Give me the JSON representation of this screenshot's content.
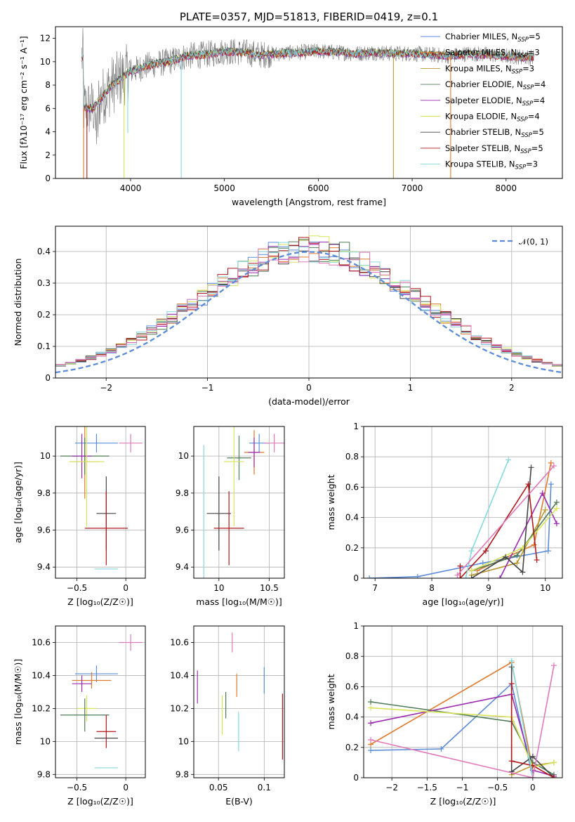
{
  "colors": {
    "chab_miles": "#5b8bd9",
    "salp_miles": "#e07a2e",
    "krou_miles": "#b8962e",
    "chab_elodie": "#4f7b56",
    "salp_elodie": "#9a2bb0",
    "krou_elodie": "#d8e35a",
    "chab_stelib": "#444444",
    "salp_stelib": "#b0181c",
    "krou_stelib": "#86d9de",
    "gray_data": "#7a7a7a",
    "pink": "#e07ab8",
    "normal": "#5b8bd9"
  },
  "chart_data": [
    {
      "type": "line",
      "panel": "spectrum",
      "title": "PLATE=0357, MJD=51813, FIBERID=0419, z=0.1",
      "xlabel": "wavelength [Angstrom, rest frame]",
      "ylabel": "Flux [fλ10⁻¹⁷ erg cm⁻² s⁻¹ A⁻¹]",
      "xlim": [
        3200,
        8600
      ],
      "ylim": [
        0,
        13
      ],
      "xticks": [
        4000,
        5000,
        6000,
        7000,
        8000
      ],
      "yticks": [
        0,
        2,
        4,
        6,
        8,
        10,
        12
      ],
      "grid": false,
      "legend_placement": "upper-right",
      "legend": [
        {
          "label": "Chabrier MILES, N",
          "sub": "SSP",
          "value": "=5",
          "color": "chab_miles"
        },
        {
          "label": "Salpeter MILES, N",
          "sub": "SSP",
          "value": "=3",
          "color": "salp_miles"
        },
        {
          "label": "Kroupa MILES, N",
          "sub": "SSP",
          "value": "=3",
          "color": "krou_miles"
        },
        {
          "label": "Chabrier ELODIE, N",
          "sub": "SSP",
          "value": "=4",
          "color": "chab_elodie"
        },
        {
          "label": "Salpeter ELODIE, N",
          "sub": "SSP",
          "value": "=4",
          "color": "salp_elodie"
        },
        {
          "label": "Kroupa ELODIE, N",
          "sub": "SSP",
          "value": "=4",
          "color": "krou_elodie"
        },
        {
          "label": "Chabrier STELIB, N",
          "sub": "SSP",
          "value": "=5",
          "color": "chab_stelib"
        },
        {
          "label": "Salpeter STELIB, N",
          "sub": "SSP",
          "value": "=5",
          "color": "salp_stelib"
        },
        {
          "label": "Kroupa STELIB, N",
          "sub": "SSP",
          "value": "=3",
          "color": "krou_stelib"
        }
      ],
      "continuum": [
        [
          3500,
          6.0
        ],
        [
          3600,
          6.0
        ],
        [
          3700,
          7.0
        ],
        [
          3800,
          8.0
        ],
        [
          3900,
          8.6
        ],
        [
          4000,
          9.2
        ],
        [
          4200,
          9.7
        ],
        [
          4400,
          10.0
        ],
        [
          4600,
          10.5
        ],
        [
          4800,
          10.6
        ],
        [
          5000,
          10.9
        ],
        [
          5200,
          10.8
        ],
        [
          5400,
          10.6
        ],
        [
          5600,
          10.7
        ],
        [
          5800,
          10.8
        ],
        [
          6000,
          10.9
        ],
        [
          6200,
          10.8
        ],
        [
          6400,
          10.7
        ],
        [
          6600,
          10.8
        ],
        [
          6800,
          10.7
        ],
        [
          7000,
          10.7
        ],
        [
          7200,
          10.6
        ],
        [
          7400,
          10.5
        ],
        [
          7600,
          10.7
        ],
        [
          7800,
          10.6
        ],
        [
          8000,
          10.5
        ],
        [
          8200,
          10.4
        ],
        [
          8300,
          10.4
        ]
      ],
      "features": [
        [
          3500,
          "salp_miles",
          0
        ],
        [
          3535,
          "salp_stelib",
          0
        ],
        [
          3930,
          "krou_elodie",
          0
        ],
        [
          3970,
          "krou_stelib",
          3.9
        ],
        [
          4540,
          "krou_stelib",
          0
        ],
        [
          6800,
          "krou_miles",
          0
        ],
        [
          7410,
          "salp_miles",
          0
        ]
      ]
    },
    {
      "type": "bar",
      "panel": "residuals",
      "xlabel": "(data-model)/error",
      "ylabel": "Normed distribution",
      "xlim": [
        -2.5,
        2.5
      ],
      "ylim": [
        0,
        0.48
      ],
      "xticks": [
        -2,
        -1,
        0,
        1,
        2
      ],
      "yticks": [
        0.0,
        0.1,
        0.2,
        0.3,
        0.4
      ],
      "grid": true,
      "legend_placement": "upper-right",
      "legend": [
        {
          "label": "𝒩(0, 1)",
          "color": "normal",
          "style": "dashed"
        }
      ],
      "bin_width": 0.1
    },
    {
      "type": "scatter",
      "panel": "age-vs-metallicity",
      "xlabel": "Z [log₁₀(Z/Z☉)]",
      "ylabel": "age  [log₁₀(age/yr)]",
      "xlim": [
        -0.72,
        0.2
      ],
      "ylim": [
        9.34,
        10.16
      ],
      "xticks": [
        -0.5,
        0.0
      ],
      "yticks": [
        9.4,
        9.6,
        9.8,
        10.0
      ],
      "grid": true,
      "points": [
        {
          "x": -0.3,
          "y": 10.07,
          "xerr": 0.22,
          "yerr": 0.05,
          "color": "chab_miles"
        },
        {
          "x": 0.05,
          "y": 10.07,
          "xerr": 0.12,
          "yerr": 0.05,
          "color": "pink"
        },
        {
          "x": -0.42,
          "y": 9.97,
          "xerr": 0.15,
          "yerr": 0.2,
          "color": "salp_miles"
        },
        {
          "x": -0.42,
          "y": 10.0,
          "xerr": 0.25,
          "yerr": 0.1,
          "color": "chab_elodie"
        },
        {
          "x": -0.45,
          "y": 10.0,
          "xerr": 0.1,
          "yerr": 0.12,
          "color": "salp_elodie"
        },
        {
          "x": -0.4,
          "y": 9.97,
          "xerr": 0.18,
          "yerr": 0.35,
          "color": "krou_elodie"
        },
        {
          "x": -0.2,
          "y": 9.69,
          "xerr": 0.1,
          "yerr": 0.2,
          "color": "chab_stelib"
        },
        {
          "x": -0.2,
          "y": 9.61,
          "xerr": 0.22,
          "yerr": 0.2,
          "color": "salp_stelib"
        },
        {
          "x": -0.2,
          "y": 9.39,
          "xerr": 0.12,
          "yerr": 0.0,
          "color": "krou_stelib"
        }
      ]
    },
    {
      "type": "scatter",
      "panel": "age-vs-mass",
      "xlabel": "mass [log₁₀(M/M☉)]",
      "ylabel": "",
      "xlim": [
        9.75,
        10.65
      ],
      "ylim": [
        9.34,
        10.16
      ],
      "xticks": [
        10.0,
        10.5
      ],
      "yticks": [
        9.4,
        9.6,
        9.8,
        10.0
      ],
      "grid": true,
      "points": [
        {
          "x": 10.4,
          "y": 10.07,
          "xerr": 0.1,
          "yerr": 0.05,
          "color": "chab_miles"
        },
        {
          "x": 10.55,
          "y": 10.07,
          "xerr": 0.1,
          "yerr": 0.05,
          "color": "pink"
        },
        {
          "x": 10.35,
          "y": 10.02,
          "xerr": 0.1,
          "yerr": 0.12,
          "color": "salp_miles"
        },
        {
          "x": 10.2,
          "y": 9.99,
          "xerr": 0.12,
          "yerr": 0.12,
          "color": "chab_elodie"
        },
        {
          "x": 10.35,
          "y": 10.02,
          "xerr": 0.06,
          "yerr": 0.08,
          "color": "salp_elodie"
        },
        {
          "x": 10.15,
          "y": 9.97,
          "xerr": 0.1,
          "yerr": 0.35,
          "color": "krou_elodie"
        },
        {
          "x": 10.0,
          "y": 9.69,
          "xerr": 0.12,
          "yerr": 0.2,
          "color": "chab_stelib"
        },
        {
          "x": 10.1,
          "y": 9.61,
          "xerr": 0.15,
          "yerr": 0.2,
          "color": "salp_stelib"
        },
        {
          "x": 9.85,
          "y": 9.39,
          "xerr": 0.0,
          "yerr": 0.67,
          "color": "krou_stelib"
        }
      ]
    },
    {
      "type": "line",
      "panel": "mass-weight-vs-age",
      "xlabel": "age  [log₁₀(age/yr)]",
      "ylabel": "mass weight",
      "xlim": [
        6.8,
        10.3
      ],
      "ylim": [
        0,
        1.0
      ],
      "xticks": [
        7,
        8,
        9,
        10
      ],
      "yticks": [
        0.0,
        0.2,
        0.4,
        0.6,
        0.8,
        1.0
      ],
      "grid": true,
      "series": [
        {
          "color": "chab_miles",
          "points": [
            [
              6.9,
              0.0
            ],
            [
              7.75,
              0.01
            ],
            [
              8.9,
              0.1
            ],
            [
              10.05,
              0.18
            ],
            [
              10.1,
              0.62
            ]
          ]
        },
        {
          "color": "salp_miles",
          "points": [
            [
              8.8,
              0.05
            ],
            [
              9.8,
              0.22
            ],
            [
              10.1,
              0.76
            ]
          ]
        },
        {
          "color": "krou_miles",
          "points": [
            [
              8.7,
              0.02
            ],
            [
              9.5,
              0.1
            ],
            [
              10.0,
              0.45
            ]
          ]
        },
        {
          "color": "chab_elodie",
          "points": [
            [
              8.7,
              0.05
            ],
            [
              9.5,
              0.15
            ],
            [
              10.2,
              0.5
            ]
          ]
        },
        {
          "color": "salp_elodie",
          "points": [
            [
              9.2,
              0.0
            ],
            [
              9.95,
              0.56
            ],
            [
              10.2,
              0.36
            ]
          ]
        },
        {
          "color": "krou_elodie",
          "points": [
            [
              8.7,
              0.05
            ],
            [
              9.6,
              0.2
            ],
            [
              10.2,
              0.46
            ]
          ]
        },
        {
          "color": "chab_stelib",
          "points": [
            [
              8.7,
              0.0
            ],
            [
              9.3,
              0.14
            ],
            [
              9.6,
              0.04
            ],
            [
              9.75,
              0.73
            ]
          ]
        },
        {
          "color": "salp_stelib",
          "points": [
            [
              8.5,
              0.08
            ],
            [
              8.5,
              0.0
            ],
            [
              8.95,
              0.18
            ],
            [
              9.7,
              0.62
            ],
            [
              9.85,
              0.12
            ]
          ]
        },
        {
          "color": "krou_stelib",
          "points": [
            [
              8.6,
              0.0
            ],
            [
              8.7,
              0.18
            ],
            [
              9.35,
              0.78
            ]
          ]
        },
        {
          "color": "pink",
          "points": [
            [
              8.45,
              0.02
            ],
            [
              10.15,
              0.74
            ]
          ]
        }
      ]
    },
    {
      "type": "scatter",
      "panel": "mass-vs-metallicity",
      "xlabel": "Z [log₁₀(Z/Z☉)]",
      "ylabel": "mass [log₁₀(M/M☉)]",
      "xlim": [
        -0.72,
        0.2
      ],
      "ylim": [
        9.78,
        10.7
      ],
      "xticks": [
        -0.5,
        0.0
      ],
      "yticks": [
        9.8,
        10.0,
        10.2,
        10.4,
        10.6
      ],
      "grid": true,
      "points": [
        {
          "x": 0.05,
          "y": 10.6,
          "xerr": 0.12,
          "yerr": 0.05,
          "color": "pink"
        },
        {
          "x": -0.3,
          "y": 10.41,
          "xerr": 0.22,
          "yerr": 0.05,
          "color": "chab_miles"
        },
        {
          "x": -0.35,
          "y": 10.37,
          "xerr": 0.2,
          "yerr": 0.05,
          "color": "salp_miles"
        },
        {
          "x": -0.45,
          "y": 10.35,
          "xerr": 0.1,
          "yerr": 0.05,
          "color": "salp_elodie"
        },
        {
          "x": -0.4,
          "y": 10.2,
          "xerr": 0.1,
          "yerr": 0.08,
          "color": "krou_elodie"
        },
        {
          "x": -0.42,
          "y": 10.16,
          "xerr": 0.25,
          "yerr": 0.1,
          "color": "chab_elodie"
        },
        {
          "x": -0.2,
          "y": 10.06,
          "xerr": 0.1,
          "yerr": 0.1,
          "color": "salp_stelib"
        },
        {
          "x": -0.2,
          "y": 10.02,
          "xerr": 0.12,
          "yerr": 0.0,
          "color": "chab_stelib"
        },
        {
          "x": -0.2,
          "y": 9.84,
          "xerr": 0.12,
          "yerr": 0.0,
          "color": "krou_stelib"
        }
      ]
    },
    {
      "type": "scatter",
      "panel": "mass-vs-reddening",
      "xlabel": "E(B-V)",
      "ylabel": "",
      "xlim": [
        0.023,
        0.122
      ],
      "ylim": [
        9.78,
        10.7
      ],
      "xticks": [
        0.05,
        0.1
      ],
      "yticks": [
        9.8,
        10.0,
        10.2,
        10.4,
        10.6
      ],
      "grid": true,
      "points": [
        {
          "x": 0.065,
          "y": 10.6,
          "yerr": 0.06,
          "color": "pink"
        },
        {
          "x": 0.1,
          "y": 10.37,
          "yerr": 0.08,
          "color": "chab_miles"
        },
        {
          "x": 0.07,
          "y": 10.34,
          "yerr": 0.07,
          "color": "salp_miles"
        },
        {
          "x": 0.027,
          "y": 10.33,
          "yerr": 0.1,
          "color": "salp_elodie"
        },
        {
          "x": 0.058,
          "y": 10.22,
          "yerr": 0.08,
          "color": "chab_elodie"
        },
        {
          "x": 0.054,
          "y": 10.16,
          "yerr": 0.12,
          "color": "krou_elodie"
        },
        {
          "x": 0.072,
          "y": 10.06,
          "yerr": 0.12,
          "color": "krou_stelib"
        },
        {
          "x": 0.12,
          "y": 10.09,
          "yerr": 0.2,
          "color": "salp_stelib"
        }
      ]
    },
    {
      "type": "line",
      "panel": "mass-weight-vs-metallicity",
      "xlabel": "Z [log₁₀(Z/Z☉)]",
      "ylabel": "mass weight",
      "xlim": [
        -2.4,
        0.42
      ],
      "ylim": [
        0,
        1.0
      ],
      "xticks": [
        -2.0,
        -1.5,
        -1.0,
        -0.5,
        0.0
      ],
      "yticks": [
        0.0,
        0.2,
        0.4,
        0.6,
        0.8,
        1.0
      ],
      "grid": true,
      "series": [
        {
          "color": "chab_miles",
          "points": [
            [
              -2.3,
              0.18
            ],
            [
              -1.3,
              0.19
            ],
            [
              -0.3,
              0.62
            ],
            [
              0.0,
              0.0
            ]
          ]
        },
        {
          "color": "salp_miles",
          "points": [
            [
              -2.3,
              0.22
            ],
            [
              -0.3,
              0.76
            ],
            [
              0.0,
              0.05
            ]
          ]
        },
        {
          "color": "krou_miles",
          "points": [
            [
              -0.3,
              0.02
            ],
            [
              0.0,
              0.08
            ],
            [
              0.3,
              0.1
            ]
          ]
        },
        {
          "color": "chab_elodie",
          "points": [
            [
              -2.3,
              0.5
            ],
            [
              -0.3,
              0.37
            ],
            [
              0.0,
              0.1
            ],
            [
              0.3,
              0.02
            ]
          ]
        },
        {
          "color": "salp_elodie",
          "points": [
            [
              -2.3,
              0.36
            ],
            [
              -0.3,
              0.55
            ],
            [
              0.0,
              0.05
            ],
            [
              0.3,
              0.01
            ]
          ]
        },
        {
          "color": "krou_elodie",
          "points": [
            [
              -2.3,
              0.46
            ],
            [
              -0.3,
              0.4
            ],
            [
              0.0,
              0.07
            ],
            [
              0.3,
              0.1
            ]
          ]
        },
        {
          "color": "chab_stelib",
          "points": [
            [
              -0.3,
              0.73
            ],
            [
              -0.3,
              0.04
            ],
            [
              0.0,
              0.14
            ],
            [
              0.3,
              0.0
            ]
          ]
        },
        {
          "color": "salp_stelib",
          "points": [
            [
              -0.3,
              0.62
            ],
            [
              -0.3,
              0.11
            ],
            [
              0.0,
              0.08
            ],
            [
              0.3,
              0.0
            ]
          ]
        },
        {
          "color": "krou_stelib",
          "points": [
            [
              -0.3,
              0.77
            ],
            [
              0.0,
              0.0
            ]
          ]
        },
        {
          "color": "pink",
          "points": [
            [
              -2.3,
              0.25
            ],
            [
              0.0,
              0.0
            ],
            [
              0.3,
              0.74
            ]
          ]
        }
      ]
    }
  ]
}
